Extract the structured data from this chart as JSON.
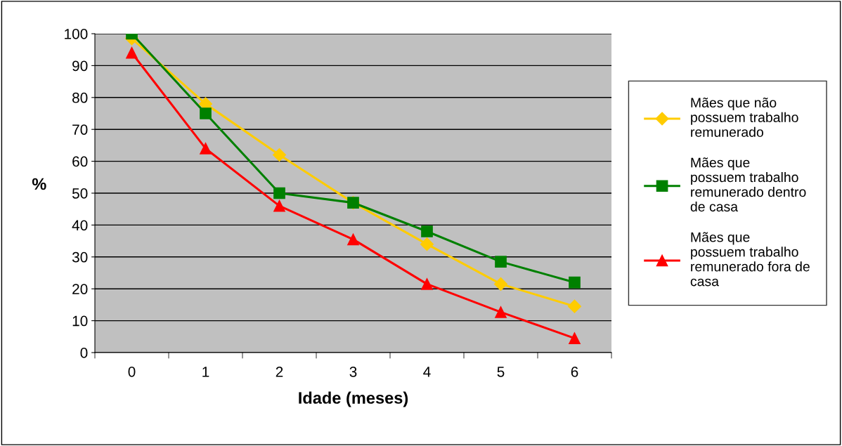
{
  "chart_data": {
    "type": "line",
    "xlabel": "Idade (meses)",
    "ylabel": "%",
    "categories": [
      "0",
      "1",
      "2",
      "3",
      "4",
      "5",
      "6"
    ],
    "series": [
      {
        "name": "Mães que não\npossuem trabalho\nremunerado",
        "color": "#ffcc00",
        "marker": "diamond",
        "values": [
          98.5,
          78,
          62,
          47,
          34,
          21.5,
          14.5
        ]
      },
      {
        "name": "Mães que\npossuem trabalho\nremunerado dentro\nde casa",
        "color": "#008000",
        "marker": "square",
        "values": [
          100,
          75,
          50,
          47,
          38,
          28.5,
          22
        ]
      },
      {
        "name": "Mães que\npossuem trabalho\nremunerado fora de\ncasa",
        "color": "#ff0000",
        "marker": "triangle",
        "values": [
          94,
          64,
          46,
          35.5,
          21.5,
          12.7,
          4.5
        ]
      }
    ],
    "ylim": [
      0,
      100
    ],
    "yticks": [
      0,
      10,
      20,
      30,
      40,
      50,
      60,
      70,
      80,
      90,
      100
    ],
    "grid": "y",
    "legend": "right",
    "line_style": "solid"
  }
}
